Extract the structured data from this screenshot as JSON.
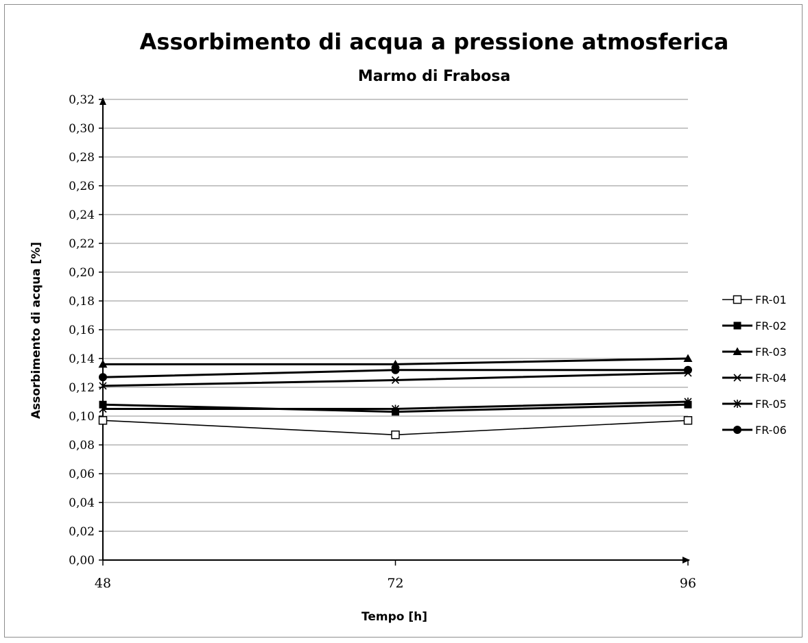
{
  "chart_data": {
    "type": "line",
    "title": "Assorbimento di acqua a pressione atmosferica",
    "subtitle": "Marmo di Frabosa",
    "xlabel": "Tempo [h]",
    "ylabel": "Assorbimento di acqua [%]",
    "x": [
      "48",
      "72",
      "96"
    ],
    "ylim": [
      0,
      0.32
    ],
    "yticks": [
      "0,00",
      "0,02",
      "0,04",
      "0,06",
      "0,08",
      "0,10",
      "0,12",
      "0,14",
      "0,16",
      "0,18",
      "0,20",
      "0,22",
      "0,24",
      "0,26",
      "0,28",
      "0,30",
      "0,32"
    ],
    "grid": "horizontal",
    "legend_position": "right",
    "series": [
      {
        "name": "FR-01",
        "marker": "open-square",
        "values": [
          0.097,
          0.087,
          0.097
        ]
      },
      {
        "name": "FR-02",
        "marker": "filled-square",
        "values": [
          0.108,
          0.103,
          0.108
        ]
      },
      {
        "name": "FR-03",
        "marker": "triangle",
        "values": [
          0.136,
          0.136,
          0.14
        ]
      },
      {
        "name": "FR-04",
        "marker": "x",
        "values": [
          0.121,
          0.125,
          0.13
        ]
      },
      {
        "name": "FR-05",
        "marker": "star",
        "values": [
          0.105,
          0.105,
          0.11
        ]
      },
      {
        "name": "FR-06",
        "marker": "circle",
        "values": [
          0.127,
          0.132,
          0.132
        ]
      }
    ],
    "line_color": "#000000",
    "grid_color": "#8c8c8c"
  }
}
